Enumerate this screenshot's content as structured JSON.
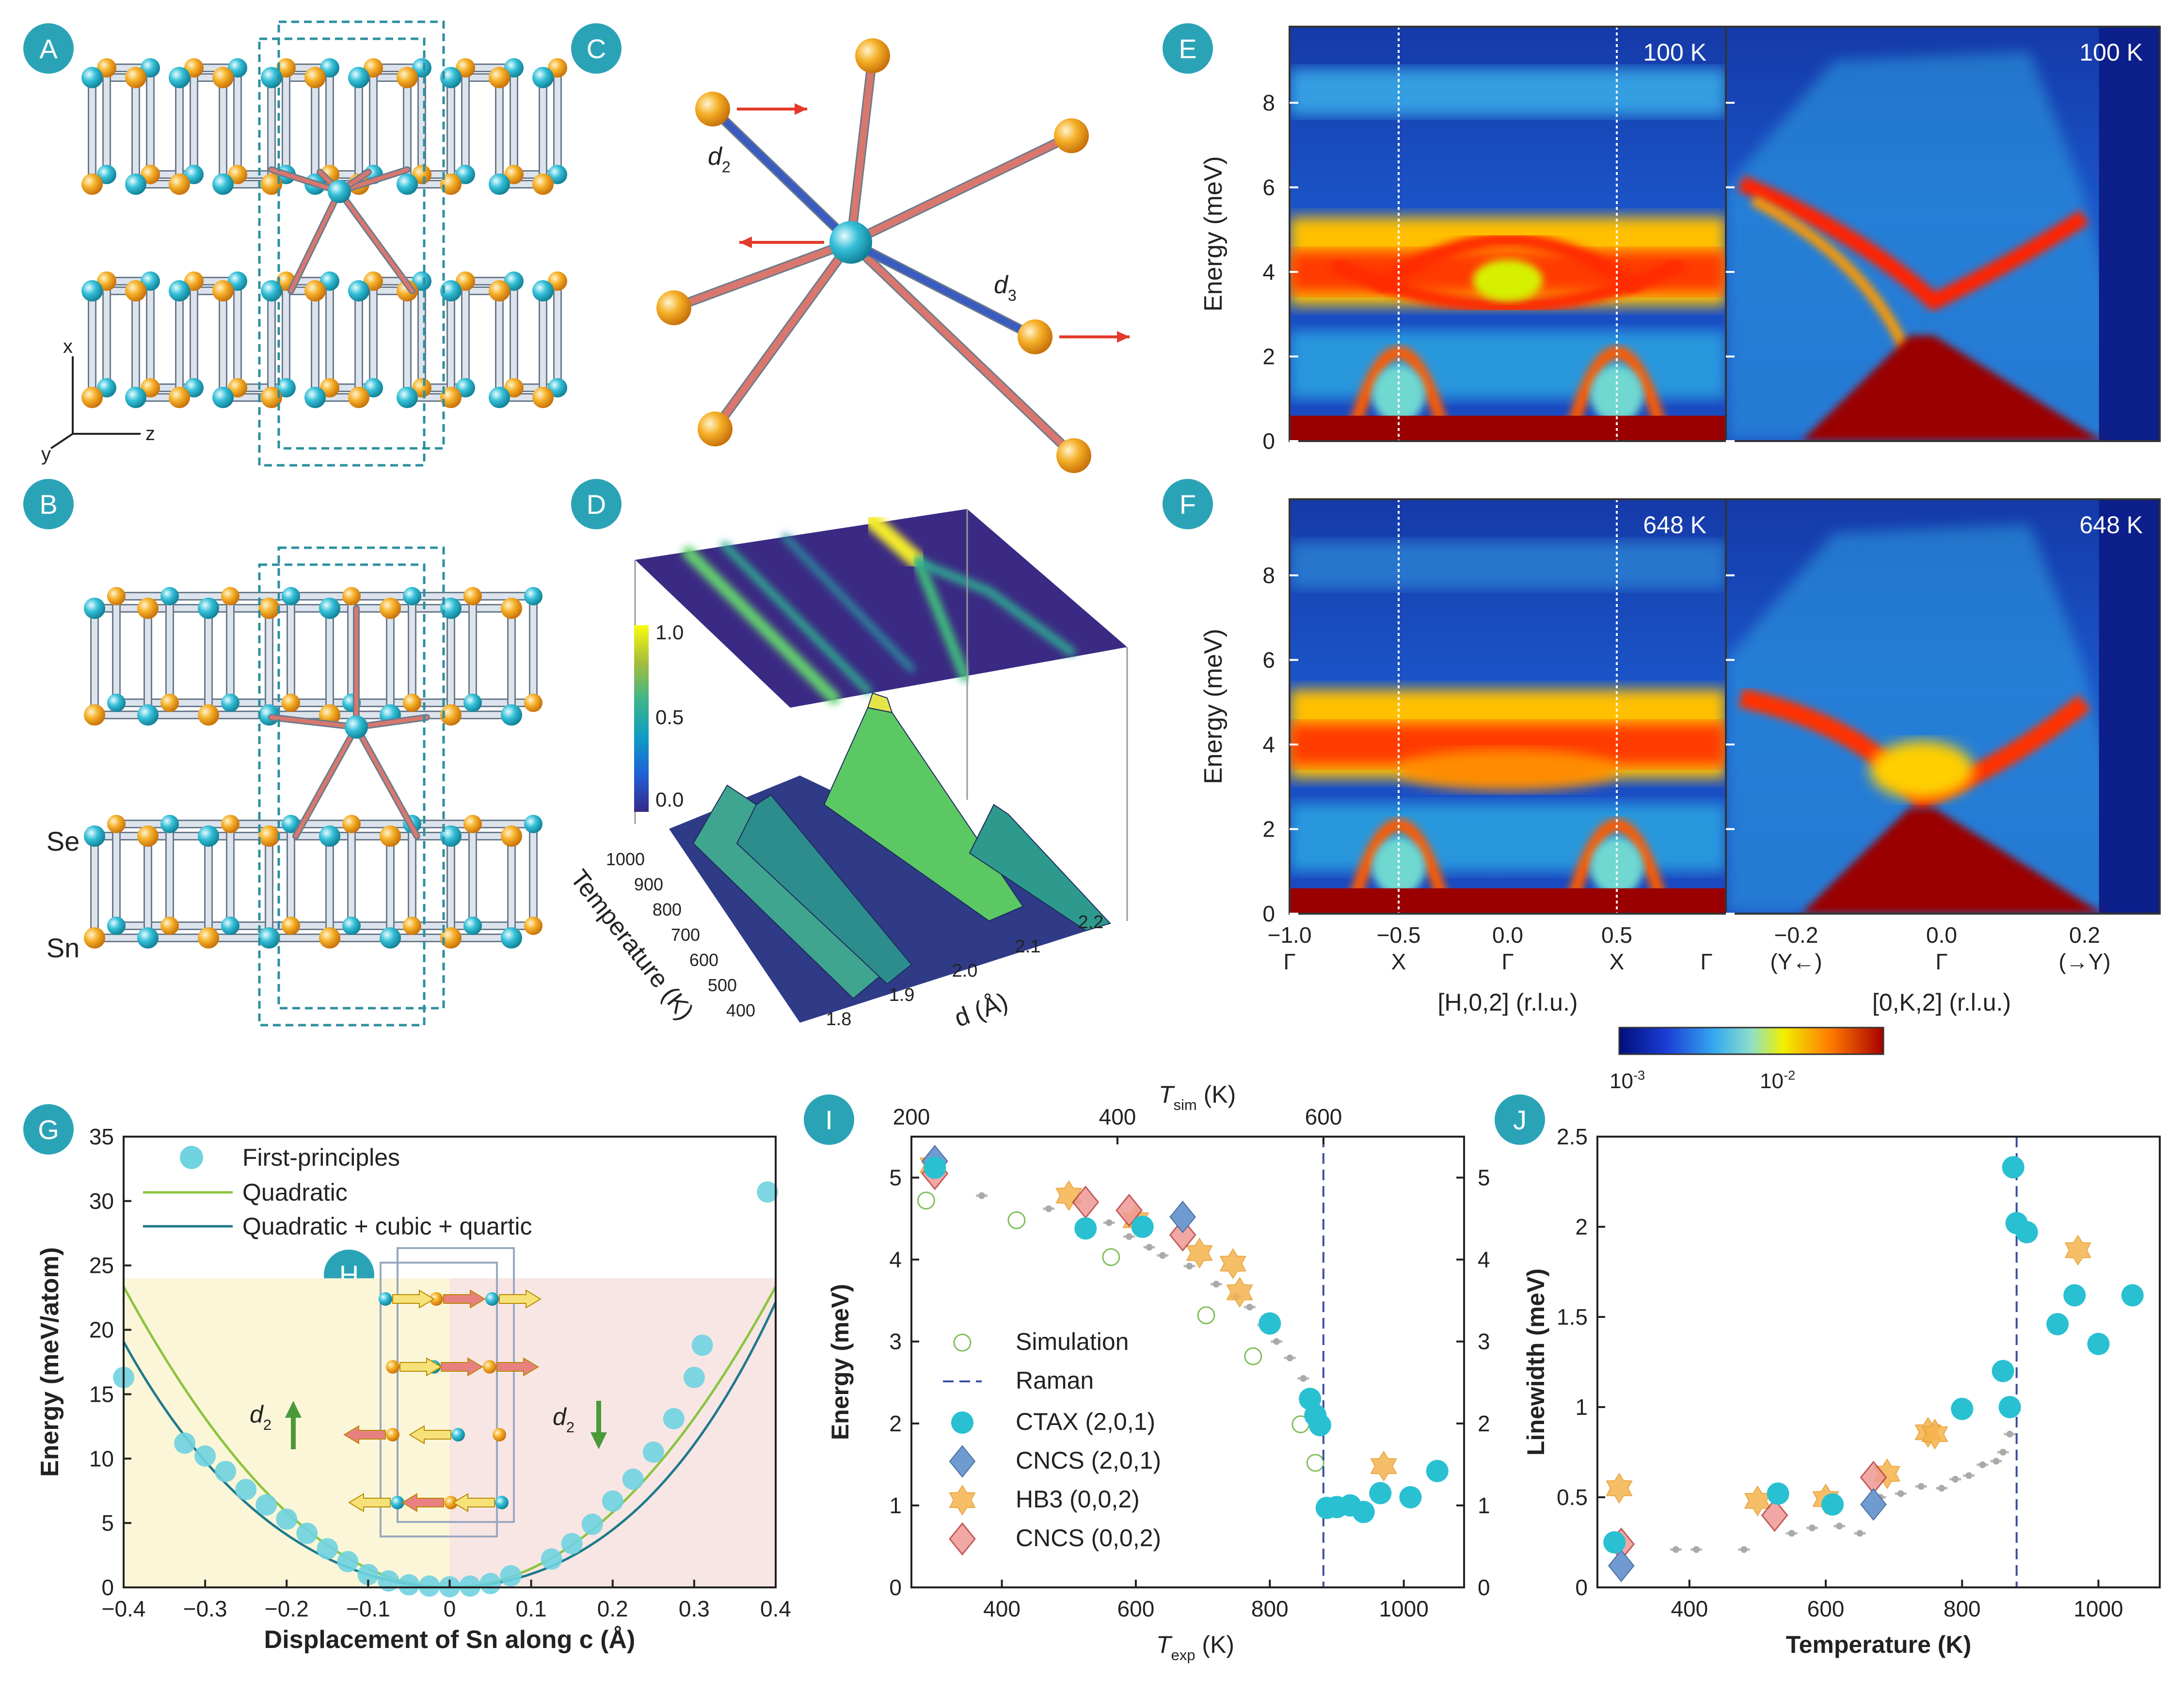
{
  "panel_labels": [
    "A",
    "B",
    "C",
    "D",
    "E",
    "F",
    "G",
    "H",
    "I",
    "J"
  ],
  "structure": {
    "axes": {
      "x": "x",
      "y": "y",
      "z": "z"
    },
    "atoms": {
      "se": "Se",
      "sn": "Sn"
    },
    "bonds": {
      "d2": "d",
      "d3": "d"
    },
    "bond_subscripts": {
      "d2": "2",
      "d3": "3"
    }
  },
  "panel_D": {
    "colorbar_ticks": [
      "1.0",
      "0.5",
      "0.0"
    ],
    "temperature_label": "Temperature (K)",
    "temperature_ticks": [
      "1000",
      "900",
      "800",
      "700",
      "600",
      "500",
      "400"
    ],
    "d_label": "d (Å)",
    "d_ticks": [
      "1.8",
      "1.9",
      "2.0",
      "2.1",
      "2.2"
    ]
  },
  "panels_EF": {
    "ylabel": "Energy (meV)",
    "yticks": [
      "0",
      "2",
      "4",
      "6",
      "8"
    ],
    "temps": {
      "E": "100 K",
      "F": "648 K"
    },
    "h_ticks": [
      "−1.0",
      "−0.5",
      "0.0",
      "0.5"
    ],
    "h_points": [
      "Γ",
      "X",
      "Γ",
      "X",
      "Γ"
    ],
    "k_ticks": [
      "−0.2",
      "0.0",
      "0.2"
    ],
    "k_points": [
      "(Y←)",
      "Γ",
      "(→Y)"
    ],
    "h_label": "[H,0,2] (r.l.u.)",
    "k_label": "[0,K,2] (r.l.u.)",
    "colorbar_ticks": [
      "10",
      "10"
    ],
    "colorbar_exp": [
      "-3",
      "-2"
    ]
  },
  "colors": {
    "teal_label": "#2ba3b7",
    "sn": "#35c0d8",
    "se": "#f5a623",
    "bond_red": "#d9776e",
    "bond_blue": "#3a5bbf",
    "quadratic": "#8cc43f",
    "quartic": "#1e7a8c",
    "ctax": "#29c0d2",
    "cncs201": "#6f9bd1",
    "hb3": "#f5b34c",
    "cncs002": "#e06c6c",
    "raman": "#3b4fa0"
  },
  "chart_data": [
    {
      "type": "scatter",
      "panel": "G",
      "xlabel": "Displacement of Sn along c (Å)",
      "ylabel": "Energy (meV/atom)",
      "xlim": [
        -0.4,
        0.4
      ],
      "ylim": [
        0,
        35
      ],
      "xticks": [
        "−0.4",
        "−0.3",
        "−0.2",
        "−0.1",
        "0",
        "0.1",
        "0.2",
        "0.3",
        "0.4"
      ],
      "yticks": [
        "0",
        "5",
        "10",
        "15",
        "20",
        "25",
        "30",
        "35"
      ],
      "legend": [
        "First-principles",
        "Quadratic",
        "Quadratic + cubic + quartic"
      ],
      "annotation_d2": [
        "d",
        "d"
      ],
      "points": [
        [
          -0.4,
          16.3
        ],
        [
          -0.325,
          11.2
        ],
        [
          -0.3,
          10.2
        ],
        [
          -0.275,
          9.0
        ],
        [
          -0.25,
          7.6
        ],
        [
          -0.225,
          6.4
        ],
        [
          -0.2,
          5.3
        ],
        [
          -0.175,
          4.2
        ],
        [
          -0.15,
          3.0
        ],
        [
          -0.125,
          2.0
        ],
        [
          -0.1,
          1.0
        ],
        [
          -0.075,
          0.5
        ],
        [
          -0.05,
          0.2
        ],
        [
          -0.025,
          0.1
        ],
        [
          0,
          0.05
        ],
        [
          0.025,
          0.1
        ],
        [
          0.05,
          0.3
        ],
        [
          0.075,
          0.9
        ],
        [
          0.125,
          2.2
        ],
        [
          0.15,
          3.4
        ],
        [
          0.175,
          4.9
        ],
        [
          0.2,
          6.7
        ],
        [
          0.225,
          8.4
        ],
        [
          0.25,
          10.5
        ],
        [
          0.275,
          13.1
        ],
        [
          0.3,
          16.3
        ],
        [
          0.31,
          18.8
        ],
        [
          0.39,
          30.7
        ]
      ],
      "quadratic_coef": 146,
      "quartic_model": {
        "a": 100,
        "b": 24,
        "c": 180
      }
    },
    {
      "type": "scatter",
      "panel": "I",
      "xlabel": "T",
      "xlabel_sub": "exp",
      "xlabel_unit": "(K)",
      "top_label": "T",
      "top_label_sub": "sim",
      "top_label_unit": "(K)",
      "ylabel": "Energy (meV)",
      "xlim": [
        265,
        1090
      ],
      "ylim": [
        0,
        5.5
      ],
      "xticks": [
        "400",
        "600",
        "800",
        "1000"
      ],
      "top_ticks": [
        "200",
        "400",
        "600"
      ],
      "yticks": [
        "0",
        "1",
        "2",
        "3",
        "4",
        "5"
      ],
      "raman_T": 880,
      "legend": [
        "Simulation",
        "Raman",
        "CTAX (2,0,1)",
        "CNCS (2,0,1)",
        "HB3 (0,0,2)",
        "CNCS (0,0,2)"
      ],
      "simulation": [
        [
          287,
          4.72
        ],
        [
          422,
          4.48
        ],
        [
          563,
          4.03
        ],
        [
          705,
          3.32
        ],
        [
          775,
          2.82
        ],
        [
          846,
          1.99
        ],
        [
          868,
          1.52
        ]
      ],
      "ctax": [
        [
          300,
          5.12
        ],
        [
          525,
          4.38
        ],
        [
          610,
          4.4
        ],
        [
          800,
          3.22
        ],
        [
          860,
          2.3
        ],
        [
          868,
          2.1
        ],
        [
          875,
          1.98
        ],
        [
          885,
          0.97
        ],
        [
          900,
          0.98
        ],
        [
          920,
          1.0
        ],
        [
          940,
          0.92
        ],
        [
          965,
          1.15
        ],
        [
          1010,
          1.1
        ],
        [
          1050,
          1.42
        ]
      ],
      "cncs201": [
        [
          300,
          5.2
        ],
        [
          670,
          4.52
        ]
      ],
      "hb3": [
        [
          297,
          5.15
        ],
        [
          500,
          4.78
        ],
        [
          600,
          4.48
        ],
        [
          695,
          4.08
        ],
        [
          745,
          3.95
        ],
        [
          755,
          3.6
        ],
        [
          970,
          1.48
        ]
      ],
      "cncs002": [
        [
          300,
          5.05
        ],
        [
          525,
          4.7
        ],
        [
          590,
          4.6
        ],
        [
          670,
          4.3
        ]
      ],
      "gray": [
        [
          370,
          4.78
        ],
        [
          470,
          4.62
        ],
        [
          560,
          4.45
        ],
        [
          590,
          4.28
        ],
        [
          620,
          4.15
        ],
        [
          640,
          4.05
        ],
        [
          680,
          3.92
        ],
        [
          720,
          3.7
        ],
        [
          750,
          3.55
        ],
        [
          770,
          3.42
        ],
        [
          790,
          3.2
        ],
        [
          810,
          3.0
        ],
        [
          830,
          2.8
        ],
        [
          850,
          2.55
        ],
        [
          865,
          2.3
        ],
        [
          875,
          2.1
        ]
      ]
    },
    {
      "type": "scatter",
      "panel": "J",
      "xlabel": "Temperature (K)",
      "ylabel": "Linewidth (meV)",
      "xlim": [
        265,
        1090
      ],
      "ylim": [
        0,
        2.5
      ],
      "xticks": [
        "400",
        "600",
        "800",
        "1000"
      ],
      "yticks": [
        "0",
        "0.5",
        "1",
        "1.5",
        "2",
        "2.5"
      ],
      "raman_T": 880,
      "ctax": [
        [
          290,
          0.25
        ],
        [
          530,
          0.52
        ],
        [
          610,
          0.46
        ],
        [
          800,
          0.99
        ],
        [
          860,
          1.2
        ],
        [
          870,
          1.0
        ],
        [
          875,
          2.33
        ],
        [
          880,
          2.02
        ],
        [
          895,
          1.97
        ],
        [
          940,
          1.46
        ],
        [
          965,
          1.62
        ],
        [
          1000,
          1.35
        ],
        [
          1050,
          1.62
        ]
      ],
      "cncs201": [
        [
          300,
          0.12
        ],
        [
          670,
          0.46
        ]
      ],
      "hb3": [
        [
          297,
          0.55
        ],
        [
          500,
          0.48
        ],
        [
          600,
          0.49
        ],
        [
          690,
          0.63
        ],
        [
          750,
          0.86
        ],
        [
          760,
          0.85
        ],
        [
          970,
          1.87
        ]
      ],
      "cncs002": [
        [
          300,
          0.24
        ],
        [
          525,
          0.4
        ],
        [
          670,
          0.61
        ]
      ],
      "gray": [
        [
          380,
          0.21
        ],
        [
          410,
          0.21
        ],
        [
          480,
          0.21
        ],
        [
          550,
          0.3
        ],
        [
          580,
          0.33
        ],
        [
          620,
          0.34
        ],
        [
          650,
          0.3
        ],
        [
          680,
          0.5
        ],
        [
          710,
          0.52
        ],
        [
          740,
          0.56
        ],
        [
          770,
          0.55
        ],
        [
          790,
          0.6
        ],
        [
          810,
          0.62
        ],
        [
          830,
          0.68
        ],
        [
          850,
          0.7
        ],
        [
          860,
          0.75
        ],
        [
          870,
          0.85
        ]
      ]
    }
  ]
}
